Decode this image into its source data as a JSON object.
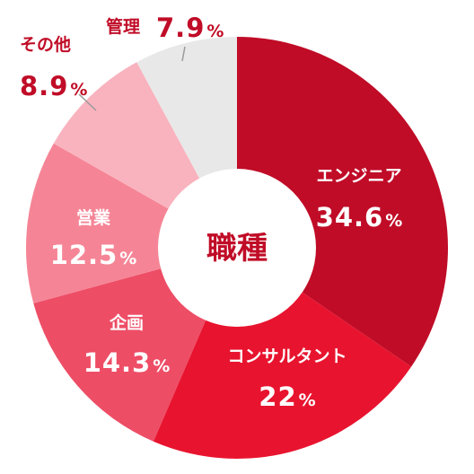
{
  "chart_data": {
    "type": "pie",
    "title": "職種",
    "unit": "%",
    "categories": [
      "エンジニア",
      "コンサルタント",
      "企画",
      "営業",
      "その他",
      "管理"
    ],
    "values": [
      34.6,
      22,
      14.3,
      12.5,
      8.9,
      7.9
    ],
    "colors": [
      "#c00c27",
      "#e8142f",
      "#ee4d66",
      "#f58596",
      "#f9b3be",
      "#e8e8e8"
    ],
    "center_color": "#c00c27",
    "grid": false,
    "legend": "none"
  }
}
